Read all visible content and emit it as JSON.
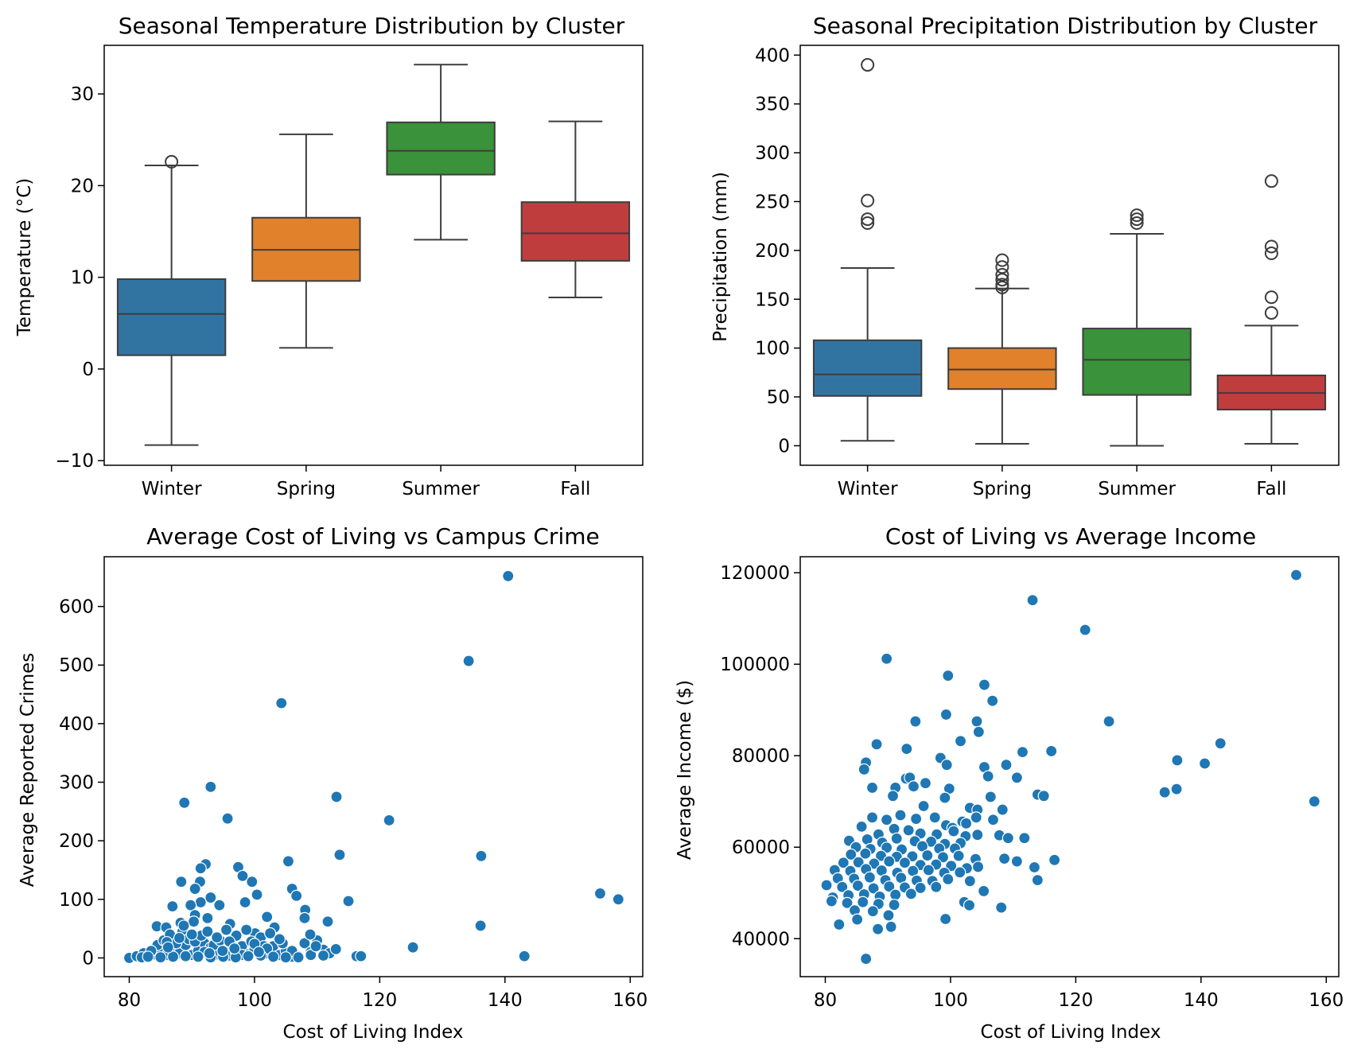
{
  "chart_data": [
    {
      "type": "box",
      "title": "Seasonal Temperature Distribution by Cluster",
      "xlabel": "",
      "ylabel": "Temperature (°C)",
      "ylim": [
        -10.5,
        35.3
      ],
      "yticks": [
        -10,
        0,
        10,
        20,
        30
      ],
      "ytick_labels": [
        "−10",
        "0",
        "10",
        "20",
        "30"
      ],
      "categories": [
        "Winter",
        "Spring",
        "Summer",
        "Fall"
      ],
      "colors": [
        "#3274a1",
        "#e1812c",
        "#3a923a",
        "#c03d3e"
      ],
      "boxes": [
        {
          "whislo": -8.3,
          "q1": 1.5,
          "med": 6.0,
          "q3": 9.8,
          "whishi": 22.2,
          "fliers": [
            22.6
          ]
        },
        {
          "whislo": 2.3,
          "q1": 9.6,
          "med": 13.0,
          "q3": 16.5,
          "whishi": 25.6,
          "fliers": []
        },
        {
          "whislo": 14.1,
          "q1": 21.2,
          "med": 23.8,
          "q3": 26.9,
          "whishi": 33.2,
          "fliers": []
        },
        {
          "whislo": 7.8,
          "q1": 11.8,
          "med": 14.8,
          "q3": 18.2,
          "whishi": 27.0,
          "fliers": []
        }
      ]
    },
    {
      "type": "box",
      "title": "Seasonal Precipitation Distribution by Cluster",
      "xlabel": "",
      "ylabel": "Precipitation (mm)",
      "ylim": [
        -20,
        410
      ],
      "yticks": [
        0,
        50,
        100,
        150,
        200,
        250,
        300,
        350,
        400
      ],
      "ytick_labels": [
        "0",
        "50",
        "100",
        "150",
        "200",
        "250",
        "300",
        "350",
        "400"
      ],
      "categories": [
        "Winter",
        "Spring",
        "Summer",
        "Fall"
      ],
      "colors": [
        "#3274a1",
        "#e1812c",
        "#3a923a",
        "#c03d3e"
      ],
      "boxes": [
        {
          "whislo": 5,
          "q1": 51,
          "med": 73,
          "q3": 108,
          "whishi": 182,
          "fliers": [
            390,
            251,
            232,
            228
          ]
        },
        {
          "whislo": 2,
          "q1": 58,
          "med": 78,
          "q3": 100,
          "whishi": 161,
          "fliers": [
            190,
            183,
            175,
            170,
            165,
            162
          ]
        },
        {
          "whislo": 0,
          "q1": 52,
          "med": 88,
          "q3": 120,
          "whishi": 217,
          "fliers": [
            236,
            232,
            228
          ]
        },
        {
          "whislo": 2,
          "q1": 37,
          "med": 54,
          "q3": 72,
          "whishi": 123,
          "fliers": [
            271,
            204,
            197,
            152,
            136
          ]
        }
      ]
    },
    {
      "type": "scatter",
      "title": "Average Cost of Living vs Campus Crime",
      "xlabel": "Cost of Living Index",
      "ylabel": "Average Reported Crimes",
      "xlim": [
        76,
        162
      ],
      "ylim": [
        -32,
        685
      ],
      "xticks": [
        80,
        100,
        120,
        140,
        160
      ],
      "yticks": [
        0,
        100,
        200,
        300,
        400,
        500,
        600
      ],
      "color": "#1f77b4",
      "points": [
        [
          140.5,
          652
        ],
        [
          134.2,
          507
        ],
        [
          104.3,
          435
        ],
        [
          93.0,
          292
        ],
        [
          88.8,
          265
        ],
        [
          113.1,
          275
        ],
        [
          95.7,
          238
        ],
        [
          121.5,
          235
        ],
        [
          113.6,
          176
        ],
        [
          136.2,
          174
        ],
        [
          105.4,
          165
        ],
        [
          92.2,
          160
        ],
        [
          97.4,
          155
        ],
        [
          91.4,
          153
        ],
        [
          99.6,
          130
        ],
        [
          98.1,
          140
        ],
        [
          88.3,
          130
        ],
        [
          91.3,
          130
        ],
        [
          106.0,
          118
        ],
        [
          100.4,
          108
        ],
        [
          106.7,
          106
        ],
        [
          90.5,
          118
        ],
        [
          155.2,
          110
        ],
        [
          158.1,
          100
        ],
        [
          115.0,
          97
        ],
        [
          93.0,
          103
        ],
        [
          91.4,
          95
        ],
        [
          86.9,
          88
        ],
        [
          89.8,
          90
        ],
        [
          94.4,
          90
        ],
        [
          108.1,
          82
        ],
        [
          102.0,
          70
        ],
        [
          108.0,
          68
        ],
        [
          111.7,
          62
        ],
        [
          98.5,
          95
        ],
        [
          96.1,
          58
        ],
        [
          92.5,
          68
        ],
        [
          136.1,
          55
        ],
        [
          84.4,
          54
        ],
        [
          85.9,
          52
        ],
        [
          88.2,
          60
        ],
        [
          90.5,
          73
        ],
        [
          97.1,
          38
        ],
        [
          103.2,
          52
        ],
        [
          100.1,
          42
        ],
        [
          125.3,
          18
        ],
        [
          143.1,
          3
        ],
        [
          116.3,
          3
        ],
        [
          117.0,
          3
        ],
        [
          80.0,
          0
        ],
        [
          81.2,
          3
        ],
        [
          82.3,
          8
        ],
        [
          83.1,
          4
        ],
        [
          84.0,
          6
        ],
        [
          85.0,
          12
        ],
        [
          86.0,
          5
        ],
        [
          87.0,
          15
        ],
        [
          88.0,
          8
        ],
        [
          89.0,
          22
        ],
        [
          90.0,
          5
        ],
        [
          91.0,
          12
        ],
        [
          92.0,
          25
        ],
        [
          93.0,
          18
        ],
        [
          94.0,
          6
        ],
        [
          95.0,
          14
        ],
        [
          96.0,
          4
        ],
        [
          97.0,
          10
        ],
        [
          98.0,
          20
        ],
        [
          99.0,
          6
        ],
        [
          100.0,
          15
        ],
        [
          101.0,
          35
        ],
        [
          102.0,
          8
        ],
        [
          103.0,
          20
        ],
        [
          104.0,
          5
        ],
        [
          105.0,
          12
        ],
        [
          106.0,
          2
        ],
        [
          107.0,
          3
        ],
        [
          108.0,
          25
        ],
        [
          109.0,
          10
        ],
        [
          110.0,
          30
        ],
        [
          111.0,
          14
        ],
        [
          112.0,
          8
        ],
        [
          113.0,
          15
        ],
        [
          84.5,
          22
        ],
        [
          85.5,
          30
        ],
        [
          86.5,
          40
        ],
        [
          87.5,
          25
        ],
        [
          88.5,
          45
        ],
        [
          89.5,
          32
        ],
        [
          90.5,
          28
        ],
        [
          91.5,
          38
        ],
        [
          92.5,
          45
        ],
        [
          93.5,
          22
        ],
        [
          94.5,
          30
        ],
        [
          95.5,
          48
        ],
        [
          96.5,
          20
        ],
        [
          99.5,
          28
        ],
        [
          101.5,
          20
        ],
        [
          102.5,
          42
        ],
        [
          104.5,
          25
        ],
        [
          83.5,
          12
        ],
        [
          82.0,
          1
        ],
        [
          86.0,
          27
        ],
        [
          88.0,
          34
        ],
        [
          90.0,
          40
        ],
        [
          92.0,
          10
        ],
        [
          94.0,
          35
        ],
        [
          96.0,
          28
        ],
        [
          98.0,
          5
        ],
        [
          100.0,
          24
        ],
        [
          102.0,
          16
        ],
        [
          104.0,
          32
        ],
        [
          106.0,
          12
        ],
        [
          89.0,
          3
        ],
        [
          91.0,
          2
        ],
        [
          93.0,
          1
        ],
        [
          95.0,
          2
        ],
        [
          97.0,
          1
        ],
        [
          99.0,
          3
        ],
        [
          87.0,
          2
        ],
        [
          85.0,
          1
        ],
        [
          83.0,
          2
        ],
        [
          101.0,
          4
        ],
        [
          103.0,
          2
        ],
        [
          105.0,
          1
        ],
        [
          107.0,
          1
        ],
        [
          109.0,
          5
        ],
        [
          111.0,
          4
        ],
        [
          90.3,
          62
        ],
        [
          88.7,
          55
        ],
        [
          86.2,
          18
        ],
        [
          92.8,
          8
        ],
        [
          94.9,
          12
        ],
        [
          96.8,
          16
        ],
        [
          98.7,
          48
        ],
        [
          100.7,
          10
        ],
        [
          108.9,
          40
        ],
        [
          109.8,
          20
        ]
      ]
    },
    {
      "type": "scatter",
      "title": "Cost of Living vs Average Income",
      "xlabel": "Cost of Living Index",
      "ylabel": "Average Income ($)",
      "xlim": [
        76,
        162
      ],
      "ylim": [
        31700,
        123500
      ],
      "xticks": [
        80,
        100,
        120,
        140,
        160
      ],
      "yticks": [
        40000,
        60000,
        80000,
        100000,
        120000
      ],
      "color": "#1f77b4",
      "points": [
        [
          155.2,
          119500
        ],
        [
          113.1,
          114000
        ],
        [
          121.5,
          107500
        ],
        [
          89.8,
          101200
        ],
        [
          99.6,
          97500
        ],
        [
          105.4,
          95500
        ],
        [
          106.7,
          92000
        ],
        [
          99.3,
          89000
        ],
        [
          94.4,
          87500
        ],
        [
          104.2,
          87500
        ],
        [
          125.3,
          87500
        ],
        [
          104.5,
          85200
        ],
        [
          143.1,
          82700
        ],
        [
          88.2,
          82500
        ],
        [
          101.6,
          83200
        ],
        [
          93.0,
          81500
        ],
        [
          116.1,
          81000
        ],
        [
          111.5,
          80800
        ],
        [
          98.4,
          79500
        ],
        [
          86.5,
          78500
        ],
        [
          136.2,
          79000
        ],
        [
          140.6,
          78300
        ],
        [
          105.4,
          77500
        ],
        [
          108.9,
          78000
        ],
        [
          99.4,
          78000
        ],
        [
          86.2,
          77000
        ],
        [
          106.0,
          75500
        ],
        [
          92.9,
          75000
        ],
        [
          110.6,
          75200
        ],
        [
          93.5,
          75200
        ],
        [
          96.0,
          74000
        ],
        [
          91.2,
          73000
        ],
        [
          94.1,
          73300
        ],
        [
          99.8,
          72800
        ],
        [
          87.5,
          73000
        ],
        [
          134.2,
          72000
        ],
        [
          136.1,
          72700
        ],
        [
          113.9,
          71500
        ],
        [
          114.9,
          71200
        ],
        [
          106.4,
          71000
        ],
        [
          99.1,
          70800
        ],
        [
          90.8,
          71200
        ],
        [
          158.1,
          70000
        ],
        [
          95.7,
          69000
        ],
        [
          103.1,
          68600
        ],
        [
          108.3,
          68200
        ],
        [
          104.3,
          68200
        ],
        [
          101.9,
          65600
        ],
        [
          104.1,
          66500
        ],
        [
          89.8,
          66000
        ],
        [
          87.5,
          66500
        ],
        [
          92.0,
          67000
        ],
        [
          94.5,
          66200
        ],
        [
          97.5,
          66500
        ],
        [
          99.3,
          64800
        ],
        [
          100.3,
          64200
        ],
        [
          102.5,
          65200
        ],
        [
          106.8,
          66000
        ],
        [
          85.8,
          64500
        ],
        [
          88.5,
          62800
        ],
        [
          91.0,
          64000
        ],
        [
          93.3,
          63700
        ],
        [
          95.2,
          63000
        ],
        [
          97.8,
          62800
        ],
        [
          100.5,
          63500
        ],
        [
          102.4,
          62400
        ],
        [
          104.3,
          62700
        ],
        [
          107.8,
          62600
        ],
        [
          109.2,
          62000
        ],
        [
          111.8,
          62000
        ],
        [
          83.8,
          61400
        ],
        [
          86.7,
          61700
        ],
        [
          89.1,
          61000
        ],
        [
          91.4,
          61900
        ],
        [
          94.3,
          61300
        ],
        [
          96.9,
          61200
        ],
        [
          99.1,
          60700
        ],
        [
          101.6,
          60900
        ],
        [
          84.9,
          60000
        ],
        [
          87.2,
          59600
        ],
        [
          89.8,
          59900
        ],
        [
          92.2,
          59500
        ],
        [
          95.5,
          60200
        ],
        [
          98.2,
          59700
        ],
        [
          100.7,
          59700
        ],
        [
          84.1,
          58400
        ],
        [
          86.4,
          58600
        ],
        [
          88.9,
          58100
        ],
        [
          91.4,
          57900
        ],
        [
          93.9,
          58000
        ],
        [
          96.3,
          58200
        ],
        [
          98.8,
          57800
        ],
        [
          101.3,
          58100
        ],
        [
          104.0,
          57400
        ],
        [
          108.6,
          57500
        ],
        [
          110.6,
          56900
        ],
        [
          113.4,
          55600
        ],
        [
          116.6,
          57200
        ],
        [
          82.9,
          56600
        ],
        [
          85.3,
          56700
        ],
        [
          87.8,
          56400
        ],
        [
          90.2,
          56900
        ],
        [
          92.7,
          56600
        ],
        [
          95.2,
          56100
        ],
        [
          97.7,
          56200
        ],
        [
          100.1,
          55900
        ],
        [
          102.6,
          55400
        ],
        [
          104.4,
          55700
        ],
        [
          81.5,
          55000
        ],
        [
          84.0,
          54800
        ],
        [
          86.5,
          55200
        ],
        [
          89.0,
          54900
        ],
        [
          91.5,
          54400
        ],
        [
          94.0,
          54800
        ],
        [
          96.5,
          55000
        ],
        [
          99.0,
          54400
        ],
        [
          101.5,
          54500
        ],
        [
          103.1,
          52600
        ],
        [
          82.0,
          53200
        ],
        [
          84.6,
          53100
        ],
        [
          87.1,
          53400
        ],
        [
          89.6,
          52800
        ],
        [
          92.1,
          53300
        ],
        [
          94.6,
          52700
        ],
        [
          97.1,
          52600
        ],
        [
          99.6,
          53000
        ],
        [
          113.9,
          52800
        ],
        [
          80.2,
          51700
        ],
        [
          82.7,
          51300
        ],
        [
          85.2,
          51600
        ],
        [
          87.7,
          51000
        ],
        [
          90.2,
          51400
        ],
        [
          92.7,
          51200
        ],
        [
          95.2,
          51100
        ],
        [
          97.7,
          51300
        ],
        [
          105.3,
          50400
        ],
        [
          81.2,
          49000
        ],
        [
          83.7,
          49500
        ],
        [
          86.2,
          49700
        ],
        [
          88.7,
          49200
        ],
        [
          91.2,
          49600
        ],
        [
          93.7,
          49800
        ],
        [
          81.0,
          48200
        ],
        [
          83.5,
          47800
        ],
        [
          86.0,
          48000
        ],
        [
          88.5,
          47600
        ],
        [
          91.0,
          47400
        ],
        [
          102.2,
          48000
        ],
        [
          103.0,
          47300
        ],
        [
          108.1,
          46800
        ],
        [
          84.7,
          46200
        ],
        [
          87.6,
          46000
        ],
        [
          90.1,
          45100
        ],
        [
          85.1,
          44200
        ],
        [
          99.2,
          44300
        ],
        [
          82.2,
          43100
        ],
        [
          88.4,
          42100
        ],
        [
          90.5,
          42600
        ],
        [
          86.5,
          35600
        ]
      ]
    }
  ]
}
